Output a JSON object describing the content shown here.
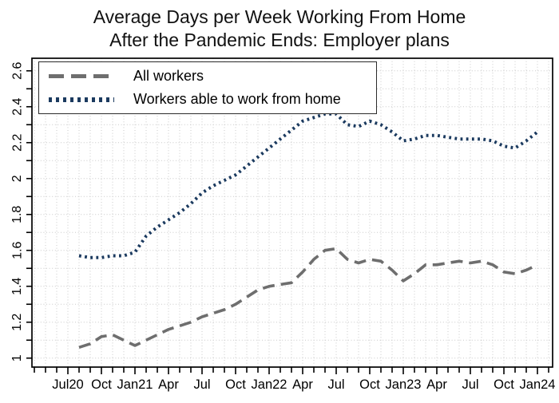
{
  "title": {
    "line1": "Average Days per Week Working From Home",
    "line2": "After the Pandemic Ends: Employer plans"
  },
  "chart_data": {
    "type": "line",
    "title": "Average Days per Week Working From Home After the Pandemic Ends: Employer plans",
    "months": [
      "Aug20",
      "Sep20",
      "Oct20",
      "Nov20",
      "Dec20",
      "Jan21",
      "Feb21",
      "Mar21",
      "Apr21",
      "May21",
      "Jun21",
      "Jul21",
      "Aug21",
      "Sep21",
      "Oct21",
      "Nov21",
      "Dec21",
      "Jan22",
      "Feb22",
      "Mar22",
      "Apr22",
      "May22",
      "Jun22",
      "Jul22",
      "Aug22",
      "Sep22",
      "Oct22",
      "Nov22",
      "Dec22",
      "Jan23",
      "Feb23",
      "Mar23",
      "Apr23",
      "May23",
      "Jun23",
      "Jul23",
      "Aug23",
      "Sep23",
      "Oct23",
      "Nov23",
      "Dec23",
      "Jan24"
    ],
    "series": [
      {
        "name": "All workers",
        "line_style": "dashed",
        "color": "#6e6e6e",
        "values": [
          1.06,
          1.08,
          1.12,
          1.13,
          1.1,
          1.07,
          1.1,
          1.13,
          1.16,
          1.18,
          1.2,
          1.23,
          1.25,
          1.27,
          1.3,
          1.34,
          1.38,
          1.4,
          1.41,
          1.42,
          1.48,
          1.55,
          1.6,
          1.61,
          1.55,
          1.53,
          1.55,
          1.54,
          1.49,
          1.43,
          1.47,
          1.52,
          1.52,
          1.53,
          1.54,
          1.53,
          1.54,
          1.52,
          1.48,
          1.47,
          1.49,
          1.52
        ]
      },
      {
        "name": "Workers able to work from home",
        "line_style": "dotted",
        "color": "#1b3a5f",
        "values": [
          1.57,
          1.56,
          1.56,
          1.57,
          1.57,
          1.59,
          1.68,
          1.73,
          1.77,
          1.81,
          1.86,
          1.92,
          1.96,
          1.99,
          2.02,
          2.07,
          2.12,
          2.17,
          2.22,
          2.27,
          2.32,
          2.34,
          2.36,
          2.36,
          2.3,
          2.29,
          2.32,
          2.3,
          2.26,
          2.21,
          2.22,
          2.24,
          2.24,
          2.23,
          2.22,
          2.22,
          2.22,
          2.21,
          2.18,
          2.17,
          2.21,
          2.26
        ]
      }
    ],
    "x_tick_labels": [
      "Jul20",
      "Oct",
      "Jan21",
      "Apr",
      "Jul",
      "Oct",
      "Jan22",
      "Apr",
      "Jul",
      "Oct",
      "Jan23",
      "Apr",
      "Jul",
      "Oct",
      "Jan24"
    ],
    "y_tick_labels": [
      "1",
      "1.2",
      "1.4",
      "1.6",
      "1.8",
      "2",
      "2.2",
      "2.4",
      "2.6"
    ],
    "ylim": [
      0.95,
      2.67
    ],
    "y_minor_step": 0.1,
    "x_minor_tick_unit": "month",
    "grid": true,
    "grid_style": "fine-dotted",
    "grid_color": "#c9c9c9",
    "frame_color": "#000000",
    "legend_position": "top-left-inside"
  }
}
